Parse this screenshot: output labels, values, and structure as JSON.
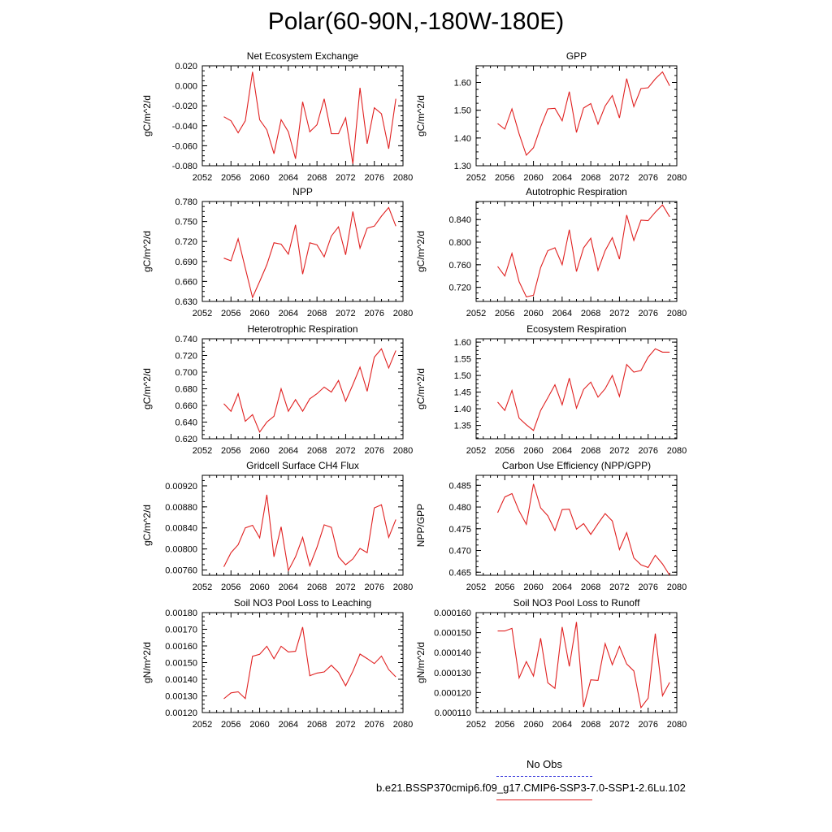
{
  "title": "Polar(60-90N,-180W-180E)",
  "legend": {
    "obs_label": "No Obs",
    "run_label": "b.e21.BSSP370cmip6.f09_g17.CMIP6-SSP3-7.0-SSP1-2.6Lu.102",
    "obs_color": "#2b2bd9",
    "run_color": "#e02020"
  },
  "chart_data": [
    {
      "type": "line",
      "title": "Net Ecosystem Exchange",
      "ylabel": "gC/m^2/d",
      "xlim": [
        2052,
        2080
      ],
      "xticks": [
        "2052",
        "2056",
        "2060",
        "2064",
        "2068",
        "2072",
        "2076",
        "2080"
      ],
      "ylim": [
        -0.08,
        0.02
      ],
      "yticks": [
        "-0.080",
        "-0.060",
        "-0.040",
        "-0.020",
        "0.000",
        "0.020"
      ],
      "x": [
        2055,
        2056,
        2057,
        2058,
        2059,
        2060,
        2061,
        2062,
        2063,
        2064,
        2065,
        2066,
        2067,
        2068,
        2069,
        2070,
        2071,
        2072,
        2073,
        2074,
        2075,
        2076,
        2077,
        2078,
        2079
      ],
      "series": [
        {
          "values": [
            -0.031,
            -0.035,
            -0.047,
            -0.035,
            0.014,
            -0.034,
            -0.044,
            -0.068,
            -0.034,
            -0.046,
            -0.073,
            -0.016,
            -0.046,
            -0.039,
            -0.013,
            -0.048,
            -0.048,
            -0.032,
            -0.078,
            -0.002,
            -0.058,
            -0.022,
            -0.028,
            -0.063,
            -0.013
          ]
        }
      ]
    },
    {
      "type": "line",
      "title": "GPP",
      "ylabel": "gC/m^2/d",
      "xlim": [
        2052,
        2080
      ],
      "xticks": [
        "2052",
        "2056",
        "2060",
        "2064",
        "2068",
        "2072",
        "2076",
        "2080"
      ],
      "ylim": [
        1.3,
        1.66
      ],
      "yticks": [
        "1.30",
        "1.40",
        "1.50",
        "1.60"
      ],
      "x": [
        2055,
        2056,
        2057,
        2058,
        2059,
        2060,
        2061,
        2062,
        2063,
        2064,
        2065,
        2066,
        2067,
        2068,
        2069,
        2070,
        2071,
        2072,
        2073,
        2074,
        2075,
        2076,
        2077,
        2078,
        2079
      ],
      "series": [
        {
          "values": [
            1.452,
            1.432,
            1.505,
            1.415,
            1.338,
            1.365,
            1.44,
            1.505,
            1.507,
            1.462,
            1.567,
            1.42,
            1.508,
            1.524,
            1.45,
            1.515,
            1.553,
            1.472,
            1.614,
            1.513,
            1.578,
            1.581,
            1.613,
            1.638,
            1.588
          ]
        }
      ]
    },
    {
      "type": "line",
      "title": "NPP",
      "ylabel": "gC/m^2/d",
      "xlim": [
        2052,
        2080
      ],
      "xticks": [
        "2052",
        "2056",
        "2060",
        "2064",
        "2068",
        "2072",
        "2076",
        "2080"
      ],
      "ylim": [
        0.63,
        0.78
      ],
      "yticks": [
        "0.630",
        "0.660",
        "0.690",
        "0.720",
        "0.750",
        "0.780"
      ],
      "x": [
        2055,
        2056,
        2057,
        2058,
        2059,
        2060,
        2061,
        2062,
        2063,
        2064,
        2065,
        2066,
        2067,
        2068,
        2069,
        2070,
        2071,
        2072,
        2073,
        2074,
        2075,
        2076,
        2077,
        2078,
        2079
      ],
      "series": [
        {
          "values": [
            0.695,
            0.691,
            0.724,
            0.68,
            0.636,
            0.66,
            0.685,
            0.718,
            0.716,
            0.701,
            0.745,
            0.671,
            0.718,
            0.715,
            0.697,
            0.728,
            0.742,
            0.7,
            0.765,
            0.71,
            0.74,
            0.743,
            0.758,
            0.771,
            0.743
          ]
        }
      ]
    },
    {
      "type": "line",
      "title": "Autotrophic Respiration",
      "ylabel": "gC/m^2/d",
      "xlim": [
        2052,
        2080
      ],
      "xticks": [
        "2052",
        "2056",
        "2060",
        "2064",
        "2068",
        "2072",
        "2076",
        "2080"
      ],
      "ylim": [
        0.695,
        0.872
      ],
      "yticks": [
        "0.720",
        "0.760",
        "0.800",
        "0.840"
      ],
      "x": [
        2055,
        2056,
        2057,
        2058,
        2059,
        2060,
        2061,
        2062,
        2063,
        2064,
        2065,
        2066,
        2067,
        2068,
        2069,
        2070,
        2071,
        2072,
        2073,
        2074,
        2075,
        2076,
        2077,
        2078,
        2079
      ],
      "series": [
        {
          "values": [
            0.757,
            0.74,
            0.78,
            0.73,
            0.703,
            0.706,
            0.755,
            0.785,
            0.79,
            0.76,
            0.822,
            0.748,
            0.79,
            0.807,
            0.75,
            0.785,
            0.808,
            0.77,
            0.848,
            0.803,
            0.839,
            0.838,
            0.853,
            0.866,
            0.845
          ]
        }
      ]
    },
    {
      "type": "line",
      "title": "Heterotrophic Respiration",
      "ylabel": "gC/m^2/d",
      "xlim": [
        2052,
        2080
      ],
      "xticks": [
        "2052",
        "2056",
        "2060",
        "2064",
        "2068",
        "2072",
        "2076",
        "2080"
      ],
      "ylim": [
        0.62,
        0.74
      ],
      "yticks": [
        "0.620",
        "0.640",
        "0.660",
        "0.680",
        "0.700",
        "0.720",
        "0.740"
      ],
      "x": [
        2055,
        2056,
        2057,
        2058,
        2059,
        2060,
        2061,
        2062,
        2063,
        2064,
        2065,
        2066,
        2067,
        2068,
        2069,
        2070,
        2071,
        2072,
        2073,
        2074,
        2075,
        2076,
        2077,
        2078,
        2079
      ],
      "series": [
        {
          "values": [
            0.662,
            0.653,
            0.674,
            0.641,
            0.649,
            0.628,
            0.64,
            0.647,
            0.68,
            0.653,
            0.667,
            0.653,
            0.668,
            0.674,
            0.682,
            0.676,
            0.69,
            0.665,
            0.685,
            0.706,
            0.677,
            0.718,
            0.728,
            0.705,
            0.726
          ]
        }
      ]
    },
    {
      "type": "line",
      "title": "Ecosystem Respiration",
      "ylabel": "gC/m^2/d",
      "xlim": [
        2052,
        2080
      ],
      "xticks": [
        "2052",
        "2056",
        "2060",
        "2064",
        "2068",
        "2072",
        "2076",
        "2080"
      ],
      "ylim": [
        1.31,
        1.61
      ],
      "yticks": [
        "1.35",
        "1.40",
        "1.45",
        "1.50",
        "1.55",
        "1.60"
      ],
      "x": [
        2055,
        2056,
        2057,
        2058,
        2059,
        2060,
        2061,
        2062,
        2063,
        2064,
        2065,
        2066,
        2067,
        2068,
        2069,
        2070,
        2071,
        2072,
        2073,
        2074,
        2075,
        2076,
        2077,
        2078,
        2079
      ],
      "series": [
        {
          "values": [
            1.42,
            1.395,
            1.455,
            1.372,
            1.352,
            1.335,
            1.395,
            1.433,
            1.472,
            1.412,
            1.492,
            1.402,
            1.458,
            1.48,
            1.435,
            1.46,
            1.5,
            1.437,
            1.533,
            1.51,
            1.515,
            1.555,
            1.58,
            1.57,
            1.57
          ]
        }
      ]
    },
    {
      "type": "line",
      "title": "Gridcell Surface CH4 Flux",
      "ylabel": "gC/m^2/d",
      "xlim": [
        2052,
        2080
      ],
      "xticks": [
        "2052",
        "2056",
        "2060",
        "2064",
        "2068",
        "2072",
        "2076",
        "2080"
      ],
      "ylim": [
        0.0075,
        0.0094
      ],
      "yticks": [
        "0.00760",
        "0.00800",
        "0.00840",
        "0.00880",
        "0.00920"
      ],
      "x": [
        2055,
        2056,
        2057,
        2058,
        2059,
        2060,
        2061,
        2062,
        2063,
        2064,
        2065,
        2066,
        2067,
        2068,
        2069,
        2070,
        2071,
        2072,
        2073,
        2074,
        2075,
        2076,
        2077,
        2078,
        2079
      ],
      "series": [
        {
          "values": [
            0.00766,
            0.00793,
            0.00808,
            0.0084,
            0.00845,
            0.00821,
            0.00903,
            0.00785,
            0.00842,
            0.00759,
            0.00785,
            0.00822,
            0.00768,
            0.00803,
            0.00846,
            0.00841,
            0.00785,
            0.0077,
            0.00781,
            0.00801,
            0.00793,
            0.00878,
            0.00884,
            0.00822,
            0.00856
          ]
        }
      ]
    },
    {
      "type": "line",
      "title": "Carbon Use Efficiency (NPP/GPP)",
      "ylabel": "NPP/GPP",
      "xlim": [
        2052,
        2080
      ],
      "xticks": [
        "2052",
        "2056",
        "2060",
        "2064",
        "2068",
        "2072",
        "2076",
        "2080"
      ],
      "ylim": [
        0.4643,
        0.4873
      ],
      "yticks": [
        "0.465",
        "0.470",
        "0.475",
        "0.480",
        "0.485"
      ],
      "x": [
        2055,
        2056,
        2057,
        2058,
        2059,
        2060,
        2061,
        2062,
        2063,
        2064,
        2065,
        2066,
        2067,
        2068,
        2069,
        2070,
        2071,
        2072,
        2073,
        2074,
        2075,
        2076,
        2077,
        2078,
        2079
      ],
      "series": [
        {
          "values": [
            0.4787,
            0.4823,
            0.4831,
            0.4791,
            0.476,
            0.4853,
            0.4798,
            0.478,
            0.4746,
            0.4794,
            0.4795,
            0.4749,
            0.4762,
            0.4737,
            0.4762,
            0.4785,
            0.4768,
            0.4702,
            0.4741,
            0.4683,
            0.4667,
            0.4661,
            0.4689,
            0.4669,
            0.4643
          ]
        }
      ]
    },
    {
      "type": "line",
      "title": "Soil NO3 Pool Loss to Leaching",
      "ylabel": "gN/m^2/d",
      "xlim": [
        2052,
        2080
      ],
      "xticks": [
        "2052",
        "2056",
        "2060",
        "2064",
        "2068",
        "2072",
        "2076",
        "2080"
      ],
      "ylim": [
        0.0012,
        0.0018
      ],
      "yticks": [
        "0.00120",
        "0.00130",
        "0.00140",
        "0.00150",
        "0.00160",
        "0.00170",
        "0.00180"
      ],
      "x": [
        2055,
        2056,
        2057,
        2058,
        2059,
        2060,
        2061,
        2062,
        2063,
        2064,
        2065,
        2066,
        2067,
        2068,
        2069,
        2070,
        2071,
        2072,
        2073,
        2074,
        2075,
        2076,
        2077,
        2078,
        2079
      ],
      "series": [
        {
          "values": [
            0.001283,
            0.001318,
            0.001325,
            0.001284,
            0.001538,
            0.00155,
            0.001598,
            0.001523,
            0.001598,
            0.001564,
            0.001568,
            0.001713,
            0.001421,
            0.001437,
            0.001444,
            0.001484,
            0.001441,
            0.001361,
            0.001448,
            0.001551,
            0.001524,
            0.001494,
            0.001539,
            0.001458,
            0.001414
          ]
        }
      ]
    },
    {
      "type": "line",
      "title": "Soil NO3 Pool Loss to Runoff",
      "ylabel": "gN/m^2/d",
      "xlim": [
        2052,
        2080
      ],
      "xticks": [
        "2052",
        "2056",
        "2060",
        "2064",
        "2068",
        "2072",
        "2076",
        "2080"
      ],
      "ylim": [
        0.00011,
        0.00016
      ],
      "yticks": [
        "0.000110",
        "0.000120",
        "0.000130",
        "0.000140",
        "0.000150",
        "0.000160"
      ],
      "x": [
        2055,
        2056,
        2057,
        2058,
        2059,
        2060,
        2061,
        2062,
        2063,
        2064,
        2065,
        2066,
        2067,
        2068,
        2069,
        2070,
        2071,
        2072,
        2073,
        2074,
        2075,
        2076,
        2077,
        2078,
        2079
      ],
      "series": [
        {
          "values": [
            0.0001508,
            0.0001508,
            0.0001521,
            0.0001273,
            0.0001355,
            0.0001283,
            0.0001472,
            0.0001249,
            0.0001221,
            0.0001528,
            0.0001331,
            0.0001553,
            0.0001128,
            0.0001264,
            0.0001261,
            0.0001445,
            0.0001339,
            0.0001431,
            0.0001343,
            0.0001308,
            0.0001125,
            0.0001172,
            0.0001495,
            0.0001184,
            0.0001251
          ]
        }
      ]
    }
  ]
}
